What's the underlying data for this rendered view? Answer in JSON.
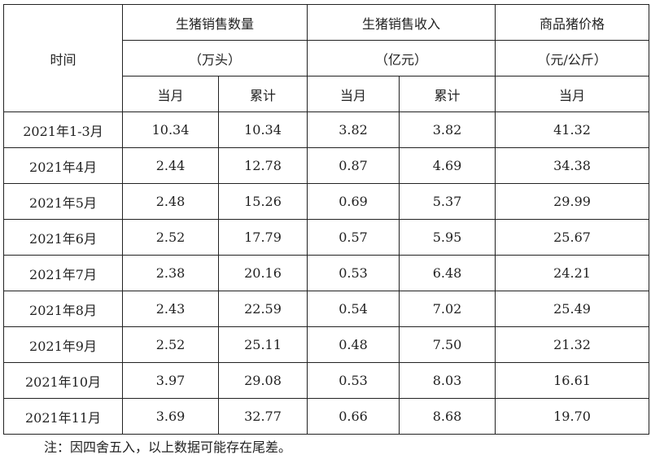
{
  "table": {
    "time_header": "时间",
    "groups": [
      {
        "title": "生猪销售数量",
        "unit": "（万头）"
      },
      {
        "title": "生猪销售收入",
        "unit": "（亿元）"
      },
      {
        "title": "商品猪价格",
        "unit": "（元/公斤）"
      }
    ],
    "subheaders": [
      "当月",
      "累计",
      "当月",
      "累计",
      "当月"
    ],
    "rows": [
      [
        "2021年1-3月",
        "10.34",
        "10.34",
        "3.82",
        "3.82",
        "41.32"
      ],
      [
        "2021年4月",
        "2.44",
        "12.78",
        "0.87",
        "4.69",
        "34.38"
      ],
      [
        "2021年5月",
        "2.48",
        "15.26",
        "0.69",
        "5.37",
        "29.99"
      ],
      [
        "2021年6月",
        "2.52",
        "17.79",
        "0.57",
        "5.95",
        "25.67"
      ],
      [
        "2021年7月",
        "2.38",
        "20.16",
        "0.53",
        "6.48",
        "24.21"
      ],
      [
        "2021年8月",
        "2.43",
        "22.59",
        "0.54",
        "7.02",
        "25.49"
      ],
      [
        "2021年9月",
        "2.52",
        "25.11",
        "0.48",
        "7.50",
        "21.32"
      ],
      [
        "2021年10月",
        "3.97",
        "29.08",
        "0.53",
        "8.03",
        "16.61"
      ],
      [
        "2021年11月",
        "3.69",
        "32.77",
        "0.66",
        "8.68",
        "19.70"
      ]
    ]
  },
  "note": "注：因四舍五入，以上数据可能存在尾差。"
}
